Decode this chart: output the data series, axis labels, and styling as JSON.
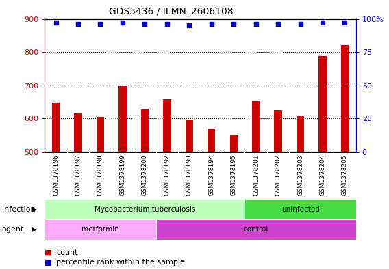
{
  "title": "GDS5436 / ILMN_2606108",
  "samples": [
    "GSM1378196",
    "GSM1378197",
    "GSM1378198",
    "GSM1378199",
    "GSM1378200",
    "GSM1378192",
    "GSM1378193",
    "GSM1378194",
    "GSM1378195",
    "GSM1378201",
    "GSM1378202",
    "GSM1378203",
    "GSM1378204",
    "GSM1378205"
  ],
  "bar_values": [
    648,
    618,
    604,
    697,
    630,
    658,
    596,
    570,
    551,
    654,
    625,
    608,
    787,
    820
  ],
  "percentile_values": [
    97,
    96,
    96,
    97,
    96,
    96,
    95,
    96,
    96,
    96,
    96,
    96,
    97,
    97
  ],
  "bar_color": "#cc0000",
  "dot_color": "#0000cc",
  "ylim_left": [
    500,
    900
  ],
  "ylim_right": [
    0,
    100
  ],
  "yticks_left": [
    500,
    600,
    700,
    800,
    900
  ],
  "yticks_right": [
    0,
    25,
    50,
    75,
    100
  ],
  "grid_levels": [
    600,
    700,
    800
  ],
  "chart_bg": "#ffffff",
  "tick_area_bg": "#dddddd",
  "infection_groups": [
    {
      "label": "Mycobacterium tuberculosis",
      "start": 0,
      "end": 9,
      "color": "#bbffbb"
    },
    {
      "label": "uninfected",
      "start": 9,
      "end": 14,
      "color": "#44dd44"
    }
  ],
  "agent_groups": [
    {
      "label": "metformin",
      "start": 0,
      "end": 5,
      "color": "#ffaaff"
    },
    {
      "label": "control",
      "start": 5,
      "end": 14,
      "color": "#cc44cc"
    }
  ],
  "infection_label": "infection",
  "agent_label": "agent",
  "legend_count_label": "count",
  "legend_percentile_label": "percentile rank within the sample",
  "left_tick_color": "#cc0000",
  "right_tick_color": "#0000cc",
  "title_fontsize": 10,
  "bar_width": 0.35,
  "dot_size": 20
}
